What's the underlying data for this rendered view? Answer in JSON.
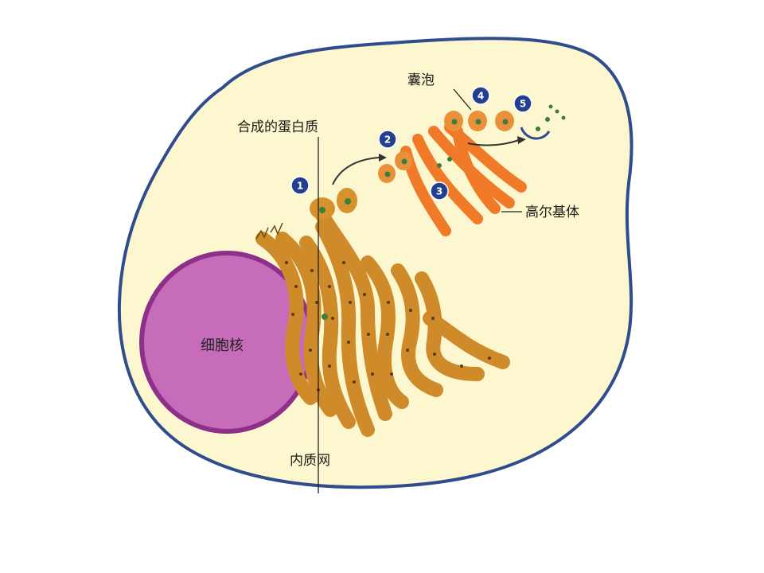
{
  "labels": {
    "synthesized_protein": "合成的蛋白质",
    "vesicle": "囊泡",
    "golgi": "高尔基体",
    "nucleus": "细胞核",
    "er": "内质网"
  },
  "steps": [
    "1",
    "2",
    "3",
    "4",
    "5"
  ],
  "colors": {
    "cell_fill": "#fdf7cf",
    "membrane": "#2f4d8c",
    "nucleus": "#c66cb8",
    "nucleus_edge": "#8e2f8a",
    "er": "#cf8a2a",
    "er_dots": "#5a3a14",
    "golgi": "#f07a28",
    "protein": "#3f7d3a",
    "step_badge": "#233f8f"
  }
}
